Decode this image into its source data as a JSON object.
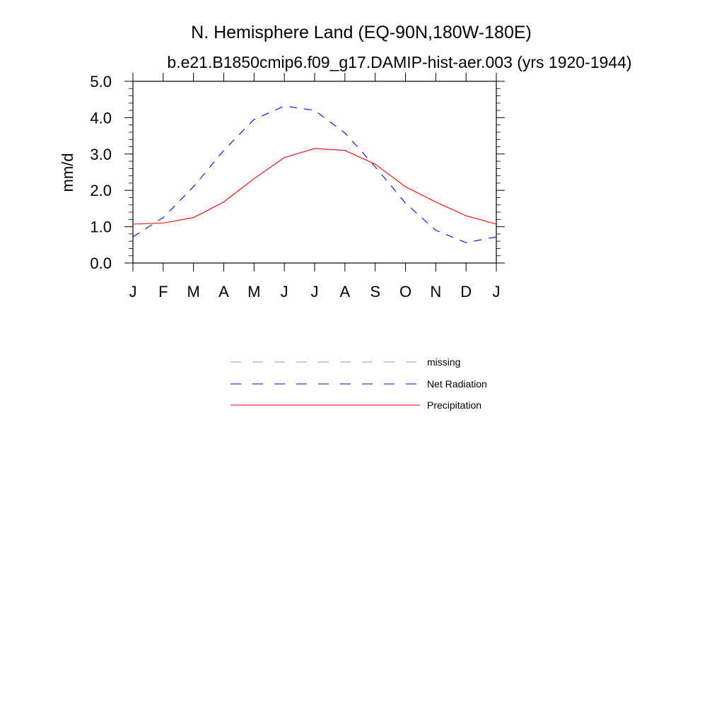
{
  "chart_data": {
    "type": "line",
    "title": "N. Hemisphere Land (EQ-90N,180W-180E)",
    "subtitle": "b.e21.B1850cmip6.f09_g17.DAMIP-hist-aer.003 (yrs 1920-1944)",
    "xlabel": "",
    "ylabel": "mm/d",
    "categories": [
      "J",
      "F",
      "M",
      "A",
      "M",
      "J",
      "J",
      "A",
      "S",
      "O",
      "N",
      "D",
      "J"
    ],
    "ylim": [
      0,
      5
    ],
    "yticks": [
      "0.0",
      "1.0",
      "2.0",
      "3.0",
      "4.0",
      "5.0"
    ],
    "grid": false,
    "legend_position": "below",
    "series": [
      {
        "name": "Net Radiation",
        "color": "#0000ff",
        "style": "dashed",
        "values": [
          0.72,
          1.25,
          2.1,
          3.1,
          3.95,
          4.32,
          4.2,
          3.58,
          2.65,
          1.65,
          0.9,
          0.56,
          0.72
        ]
      },
      {
        "name": "Precipitation",
        "color": "#ff0000",
        "style": "solid",
        "values": [
          1.07,
          1.1,
          1.25,
          1.68,
          2.32,
          2.9,
          3.15,
          3.1,
          2.72,
          2.1,
          1.68,
          1.3,
          1.07
        ]
      }
    ],
    "legend_items": [
      {
        "label": "missing",
        "color": "#999999",
        "style": "dashed"
      },
      {
        "label": "Net Radiation",
        "color": "#0000ff",
        "style": "dashed"
      },
      {
        "label": "Precipitation",
        "color": "#ff0000",
        "style": "solid"
      }
    ]
  }
}
